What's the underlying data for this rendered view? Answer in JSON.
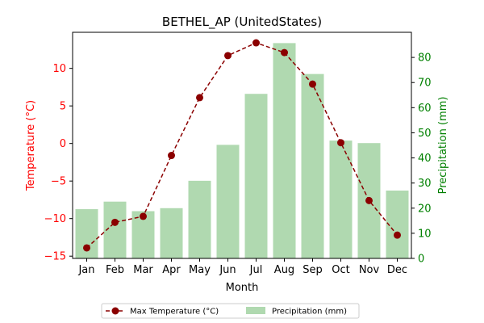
{
  "chart_data": {
    "type": "bar+line",
    "title": "BETHEL_AP (UnitedStates)",
    "xlabel": "Month",
    "ylabel_left": "Temperature (°C)",
    "ylabel_right": "Precipitation (mm)",
    "categories": [
      "Jan",
      "Feb",
      "Mar",
      "Apr",
      "May",
      "Jun",
      "Jul",
      "Aug",
      "Sep",
      "Oct",
      "Nov",
      "Dec"
    ],
    "left_ylim": [
      -15.3,
      14.8
    ],
    "left_ticks": [
      -15,
      -10,
      -5,
      0,
      5,
      10
    ],
    "right_ylim": [
      0,
      90
    ],
    "right_ticks": [
      0,
      10,
      20,
      30,
      40,
      50,
      60,
      70,
      80
    ],
    "series": [
      {
        "name": "Max Temperature (°C)",
        "kind": "line",
        "axis": "left",
        "color": "#8b0000",
        "values": [
          -13.9,
          -10.5,
          -9.7,
          -1.6,
          6.1,
          11.7,
          13.4,
          12.1,
          7.9,
          0.1,
          -7.6,
          -12.2
        ]
      },
      {
        "name": "Precipitation (mm)",
        "kind": "bar",
        "axis": "right",
        "color": "#b0d9b0",
        "values": [
          19.6,
          22.6,
          18.8,
          20.0,
          30.9,
          45.2,
          65.5,
          85.7,
          73.4,
          46.9,
          45.9,
          27.0
        ]
      }
    ],
    "colors": {
      "left_axis": "#ff0000",
      "right_axis": "#008000",
      "text": "#000000"
    },
    "legend_position": "bottom-center",
    "grid": false
  }
}
